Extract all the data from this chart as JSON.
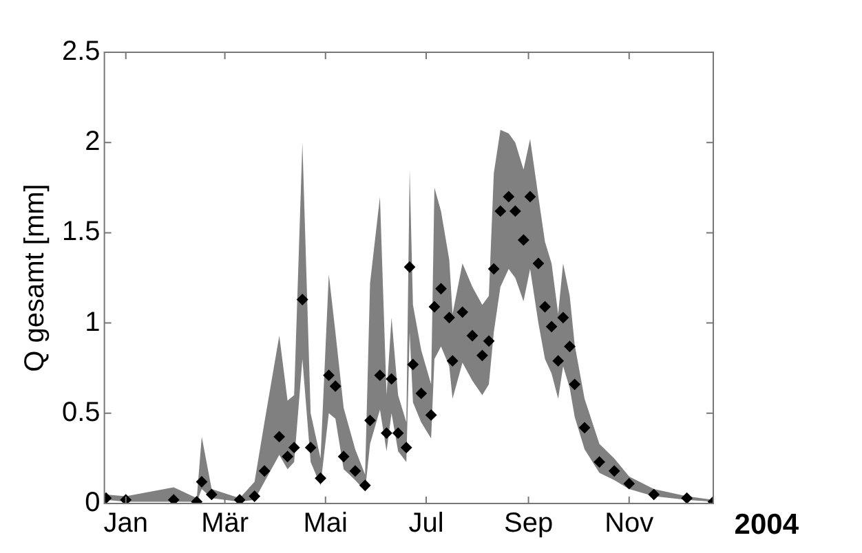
{
  "chart_data": {
    "type": "scatter",
    "ylabel": "Q gesamt [mm]",
    "annotations": [
      "2004"
    ],
    "x": [
      "2003-12-20",
      "2004-01-01",
      "2004-01-30",
      "2004-02-13",
      "2004-02-16",
      "2004-02-22",
      "2004-03-10",
      "2004-03-19",
      "2004-03-25",
      "2004-04-03",
      "2004-04-08",
      "2004-04-12",
      "2004-04-17",
      "2004-04-22",
      "2004-04-28",
      "2004-05-03",
      "2004-05-07",
      "2004-05-12",
      "2004-05-19",
      "2004-05-25",
      "2004-05-28",
      "2004-06-03",
      "2004-06-07",
      "2004-06-10",
      "2004-06-14",
      "2004-06-19",
      "2004-06-21",
      "2004-06-23",
      "2004-06-28",
      "2004-07-04",
      "2004-07-06",
      "2004-07-10",
      "2004-07-15",
      "2004-07-17",
      "2004-07-23",
      "2004-07-29",
      "2004-08-04",
      "2004-08-08",
      "2004-08-11",
      "2004-08-15",
      "2004-08-20",
      "2004-08-24",
      "2004-08-29",
      "2004-09-02",
      "2004-09-07",
      "2004-09-11",
      "2004-09-15",
      "2004-09-19",
      "2004-09-22",
      "2004-09-26",
      "2004-09-29",
      "2004-10-05",
      "2004-10-14",
      "2004-10-23",
      "2004-11-01",
      "2004-11-16",
      "2004-12-06",
      "2004-12-22"
    ],
    "series": [
      {
        "color": "#000000",
        "values": [
          0.03,
          0.02,
          0.02,
          0.01,
          0.12,
          0.05,
          0.02,
          0.04,
          0.18,
          0.37,
          0.26,
          0.31,
          1.13,
          0.31,
          0.14,
          0.71,
          0.65,
          0.26,
          0.18,
          0.1,
          0.46,
          0.71,
          0.39,
          0.69,
          0.39,
          0.31,
          1.31,
          0.77,
          0.61,
          0.49,
          1.09,
          1.19,
          1.03,
          0.79,
          1.06,
          0.93,
          0.82,
          0.9,
          1.3,
          1.62,
          1.7,
          1.62,
          1.46,
          1.7,
          1.33,
          1.09,
          0.98,
          0.79,
          1.03,
          0.87,
          0.66,
          0.42,
          0.23,
          0.18,
          0.11,
          0.05,
          0.03,
          0.01
        ],
        "lower": [
          0.02,
          0.01,
          0.01,
          0.01,
          0.08,
          0.03,
          0.01,
          0.02,
          0.12,
          0.27,
          0.19,
          0.23,
          0.8,
          0.23,
          0.1,
          0.5,
          0.47,
          0.19,
          0.13,
          0.07,
          0.33,
          0.52,
          0.29,
          0.5,
          0.29,
          0.23,
          0.95,
          0.56,
          0.45,
          0.36,
          0.8,
          0.87,
          0.76,
          0.58,
          0.78,
          0.68,
          0.6,
          0.66,
          0.95,
          1.2,
          1.3,
          1.25,
          1.12,
          1.3,
          1.0,
          0.8,
          0.72,
          0.58,
          0.76,
          0.64,
          0.48,
          0.3,
          0.17,
          0.13,
          0.08,
          0.04,
          0.02,
          0.01
        ],
        "upper": [
          0.05,
          0.04,
          0.09,
          0.03,
          0.37,
          0.08,
          0.03,
          0.12,
          0.45,
          0.93,
          0.57,
          0.6,
          2.0,
          0.5,
          0.25,
          1.27,
          0.95,
          0.53,
          0.3,
          0.16,
          1.22,
          1.7,
          0.6,
          1.03,
          0.6,
          0.45,
          1.85,
          1.1,
          0.85,
          0.66,
          1.75,
          1.62,
          1.35,
          1.05,
          1.33,
          1.2,
          1.1,
          1.15,
          1.83,
          2.07,
          2.05,
          2.0,
          1.85,
          2.02,
          1.7,
          1.45,
          1.33,
          1.05,
          1.33,
          1.15,
          0.88,
          0.58,
          0.33,
          0.25,
          0.15,
          0.08,
          0.04,
          0.02
        ]
      }
    ],
    "marker": "diamond",
    "xlim": [
      "2003-12-19",
      "2004-12-22"
    ],
    "xticks": [
      {
        "value": "2004-01-01",
        "label": "Jan"
      },
      {
        "value": "2004-03-01",
        "label": "Mär"
      },
      {
        "value": "2004-05-01",
        "label": "Mai"
      },
      {
        "value": "2004-07-01",
        "label": "Jul"
      },
      {
        "value": "2004-09-01",
        "label": "Sep"
      },
      {
        "value": "2004-11-01",
        "label": "Nov"
      }
    ],
    "ylim": [
      0,
      2.5
    ],
    "yticks": [
      0,
      0.5,
      1,
      1.5,
      2,
      2.5
    ],
    "grid": false,
    "legend": false
  }
}
